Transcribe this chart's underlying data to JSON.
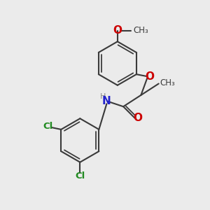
{
  "background_color": "#ebebeb",
  "bond_color": "#3a3a3a",
  "bond_width": 1.5,
  "atom_colors": {
    "O": "#cc0000",
    "N": "#2222cc",
    "Cl": "#228B22",
    "H": "#888888"
  },
  "font_size": 9,
  "fig_size": [
    3.0,
    3.0
  ],
  "dpi": 100
}
